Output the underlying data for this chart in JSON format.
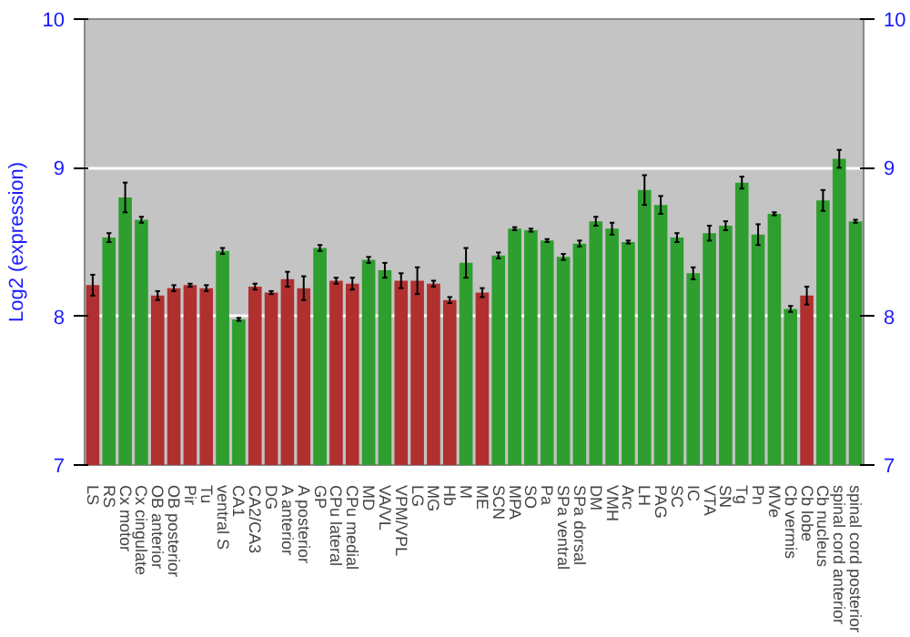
{
  "chart_data": {
    "type": "bar",
    "ylabel": "Log2 (expression)",
    "categories": [
      "LS",
      "RS",
      "Cx motor",
      "Cx cingulate",
      "OB anterior",
      "OB posterior",
      "Pir",
      "Tu",
      "ventral S",
      "CA1",
      "CA2/CA3",
      "DG",
      "A anterior",
      "A posterior",
      "GP",
      "CPu lateral",
      "CPu medial",
      "MD",
      "VA/VL",
      "VPM/VPL",
      "LG",
      "MG",
      "Hb",
      "M",
      "ME",
      "SCN",
      "MPA",
      "SO",
      "Pa",
      "SPa ventral",
      "SPa dorsal",
      "DM",
      "VMH",
      "Arc",
      "LH",
      "PAG",
      "SC",
      "IC",
      "VTA",
      "SN",
      "Tg",
      "Pn",
      "MVe",
      "Cb vermis",
      "Cb lobe",
      "Cb nucleus",
      "spinal cord anterior",
      "spinal cord posterior"
    ],
    "values": [
      8.21,
      8.53,
      8.8,
      8.65,
      8.14,
      8.19,
      8.21,
      8.19,
      8.44,
      7.98,
      8.2,
      8.16,
      8.25,
      8.19,
      8.46,
      8.24,
      8.22,
      8.38,
      8.31,
      8.24,
      8.24,
      8.22,
      8.11,
      8.36,
      8.16,
      8.41,
      8.59,
      8.58,
      8.51,
      8.4,
      8.49,
      8.64,
      8.59,
      8.5,
      8.85,
      8.75,
      8.53,
      8.29,
      8.56,
      8.61,
      8.9,
      8.55,
      8.69,
      8.05,
      8.14,
      8.78,
      9.06,
      8.64
    ],
    "errors": [
      0.07,
      0.03,
      0.1,
      0.02,
      0.03,
      0.02,
      0.01,
      0.02,
      0.02,
      0.01,
      0.02,
      0.01,
      0.05,
      0.08,
      0.02,
      0.02,
      0.04,
      0.02,
      0.05,
      0.05,
      0.09,
      0.02,
      0.02,
      0.1,
      0.03,
      0.02,
      0.01,
      0.01,
      0.01,
      0.02,
      0.02,
      0.03,
      0.04,
      0.01,
      0.1,
      0.06,
      0.03,
      0.04,
      0.05,
      0.03,
      0.04,
      0.07,
      0.01,
      0.02,
      0.06,
      0.07,
      0.06,
      0.01
    ],
    "colors": [
      "#b03030",
      "#2e9e2e",
      "#2e9e2e",
      "#2e9e2e",
      "#b03030",
      "#b03030",
      "#b03030",
      "#b03030",
      "#2e9e2e",
      "#2e9e2e",
      "#b03030",
      "#b03030",
      "#b03030",
      "#b03030",
      "#2e9e2e",
      "#b03030",
      "#b03030",
      "#2e9e2e",
      "#2e9e2e",
      "#b03030",
      "#b03030",
      "#b03030",
      "#b03030",
      "#2e9e2e",
      "#b03030",
      "#2e9e2e",
      "#2e9e2e",
      "#2e9e2e",
      "#2e9e2e",
      "#2e9e2e",
      "#2e9e2e",
      "#2e9e2e",
      "#2e9e2e",
      "#2e9e2e",
      "#2e9e2e",
      "#2e9e2e",
      "#2e9e2e",
      "#2e9e2e",
      "#2e9e2e",
      "#2e9e2e",
      "#2e9e2e",
      "#2e9e2e",
      "#2e9e2e",
      "#2e9e2e",
      "#b03030",
      "#2e9e2e",
      "#2e9e2e",
      "#2e9e2e"
    ],
    "ylim": [
      7,
      10
    ],
    "yticks": [
      7,
      8,
      9,
      10
    ],
    "y2lim": [
      7,
      10
    ],
    "y2ticks": [
      7,
      8,
      9,
      10
    ],
    "grid": "y"
  }
}
